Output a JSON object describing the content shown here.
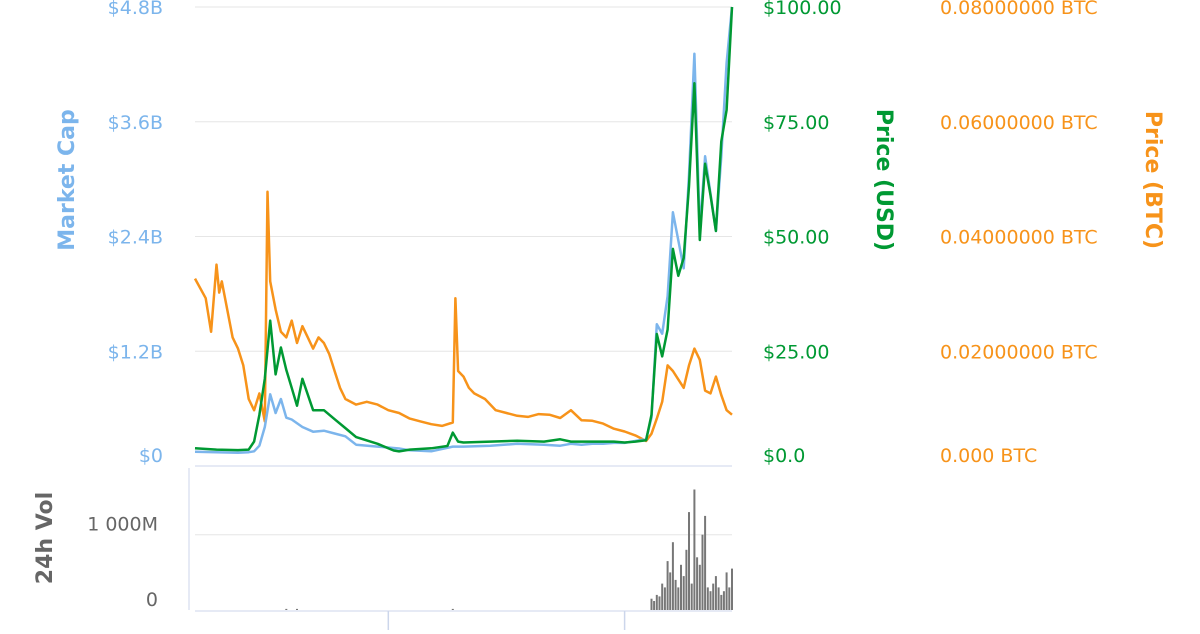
{
  "colors": {
    "market_cap": "#7cb5ec",
    "price_usd": "#009933",
    "price_btc": "#f7931a",
    "volume": "#777777",
    "axis_text_volume": "#666666",
    "gridline": "#e6e6e6",
    "axis_line": "#ccd6eb"
  },
  "chart_data": [
    {
      "type": "line",
      "grid": true,
      "legend": "none",
      "axes": {
        "market_cap": {
          "title": "Market Cap",
          "ylim": [
            0,
            4800000000
          ],
          "ticks": [
            "$0",
            "$1.2B",
            "$2.4B",
            "$3.6B",
            "$4.8B"
          ]
        },
        "price_usd": {
          "title": "Price (USD)",
          "ylim": [
            0,
            100
          ],
          "ticks": [
            "$0.0",
            "$25.00",
            "$50.00",
            "$75.00",
            "$100.00"
          ]
        },
        "price_btc": {
          "title": "Price (BTC)",
          "ylim": [
            0,
            0.08
          ],
          "ticks": [
            "0.000 BTC",
            "0.02000000 BTC",
            "0.04000000 BTC",
            "0.06000000 BTC",
            "0.08000000 BTC"
          ]
        }
      },
      "x_range": [
        0,
        100
      ],
      "series": [
        {
          "key": "price_btc",
          "axis": "price_btc",
          "x": [
            0,
            2,
            3,
            4,
            4.5,
            5,
            6,
            7,
            8,
            9,
            10,
            11,
            12,
            13,
            13.5,
            14,
            15,
            16,
            17,
            18,
            19,
            20,
            21,
            22,
            23,
            24,
            25,
            26,
            27,
            28,
            30,
            32,
            34,
            36,
            38,
            40,
            42,
            44,
            46,
            48,
            48.5,
            49,
            50,
            51,
            52,
            54,
            56,
            58,
            60,
            62,
            64,
            66,
            68,
            70,
            72,
            74,
            76,
            78,
            80,
            82,
            84,
            85,
            86,
            87,
            88,
            89,
            90,
            91,
            92,
            93,
            94,
            95,
            96,
            97,
            98,
            99,
            100
          ],
          "y": [
            0.0315,
            0.028,
            0.022,
            0.034,
            0.029,
            0.031,
            0.026,
            0.021,
            0.019,
            0.016,
            0.01,
            0.008,
            0.011,
            0.006,
            0.047,
            0.031,
            0.026,
            0.022,
            0.021,
            0.024,
            0.02,
            0.023,
            0.021,
            0.019,
            0.021,
            0.02,
            0.018,
            0.015,
            0.012,
            0.01,
            0.009,
            0.0095,
            0.009,
            0.008,
            0.0075,
            0.0065,
            0.006,
            0.0055,
            0.0052,
            0.0058,
            0.028,
            0.015,
            0.014,
            0.012,
            0.011,
            0.01,
            0.008,
            0.0075,
            0.007,
            0.0068,
            0.0073,
            0.0072,
            0.0066,
            0.008,
            0.0062,
            0.0061,
            0.0056,
            0.0047,
            0.0042,
            0.0035,
            0.0025,
            0.0038,
            0.0065,
            0.0095,
            0.016,
            0.015,
            0.0135,
            0.012,
            0.016,
            0.019,
            0.017,
            0.0115,
            0.011,
            0.014,
            0.0107,
            0.008,
            0.0072
          ]
        },
        {
          "key": "market_cap",
          "axis": "market_cap",
          "x": [
            0,
            4,
            8,
            10,
            11,
            12,
            13,
            14,
            15,
            16,
            17,
            18,
            20,
            22,
            24,
            26,
            28,
            30,
            34,
            38,
            40,
            44,
            48,
            50,
            55,
            60,
            65,
            68,
            70,
            72,
            74,
            76,
            78,
            80,
            82,
            84,
            85,
            86,
            87,
            88,
            89,
            90,
            91,
            92,
            93,
            94,
            95,
            96,
            97,
            98,
            99,
            100
          ],
          "y": [
            35000000,
            30000000,
            25000000,
            30000000,
            40000000,
            100000000,
            300000000,
            650000000,
            450000000,
            600000000,
            400000000,
            380000000,
            300000000,
            250000000,
            260000000,
            230000000,
            200000000,
            110000000,
            90000000,
            70000000,
            50000000,
            40000000,
            90000000,
            90000000,
            100000000,
            120000000,
            110000000,
            100000000,
            120000000,
            110000000,
            120000000,
            120000000,
            130000000,
            130000000,
            150000000,
            170000000,
            400000000,
            1400000000,
            1300000000,
            1700000000,
            2600000000,
            2300000000,
            2000000000,
            3000000000,
            4300000000,
            2400000000,
            3200000000,
            2800000000,
            2400000000,
            3200000000,
            4200000000,
            4800000000
          ]
        },
        {
          "key": "price_usd",
          "axis": "price_usd",
          "x": [
            0,
            4,
            8,
            10,
            11,
            12,
            13,
            14,
            15,
            16,
            17,
            18,
            19,
            20,
            22,
            24,
            26,
            28,
            30,
            34,
            37,
            38,
            40,
            44,
            47,
            48,
            49,
            50,
            55,
            60,
            65,
            68,
            70,
            72,
            74,
            76,
            78,
            80,
            82,
            84,
            85,
            86,
            87,
            88,
            89,
            90,
            91,
            92,
            93,
            94,
            95,
            96,
            97,
            98,
            99,
            100
          ],
          "y": [
            1.5,
            1.2,
            1.1,
            1.2,
            3,
            9,
            17,
            30,
            18,
            24,
            19,
            15,
            11,
            17,
            10,
            10,
            8,
            6,
            4,
            2.5,
            1,
            0.8,
            1.2,
            1.5,
            2,
            5,
            3,
            2.8,
            3.0,
            3.2,
            3.0,
            3.5,
            3.0,
            3.0,
            3.0,
            3.0,
            3.0,
            2.8,
            3.0,
            3.3,
            9,
            27,
            22,
            28,
            46,
            40,
            44,
            60,
            83,
            48,
            65,
            58,
            50,
            70,
            77,
            100
          ]
        }
      ]
    },
    {
      "type": "bar",
      "grid": true,
      "yaxis": {
        "title": "24h Vol",
        "ylim": [
          0,
          1700000000
        ],
        "ticks": [
          "0",
          "1 000M"
        ]
      },
      "x_range": [
        0,
        100
      ],
      "bars": [
        {
          "x": 17,
          "value": 15000000
        },
        {
          "x": 19,
          "value": 15000000
        },
        {
          "x": 48,
          "value": 15000000
        },
        {
          "x": 85,
          "value": 150000000
        },
        {
          "x": 85.5,
          "value": 120000000
        },
        {
          "x": 86,
          "value": 200000000
        },
        {
          "x": 86.5,
          "value": 180000000
        },
        {
          "x": 87,
          "value": 350000000
        },
        {
          "x": 87.5,
          "value": 300000000
        },
        {
          "x": 88,
          "value": 650000000
        },
        {
          "x": 88.5,
          "value": 500000000
        },
        {
          "x": 89,
          "value": 900000000
        },
        {
          "x": 89.5,
          "value": 400000000
        },
        {
          "x": 90,
          "value": 300000000
        },
        {
          "x": 90.5,
          "value": 600000000
        },
        {
          "x": 91,
          "value": 450000000
        },
        {
          "x": 91.5,
          "value": 800000000
        },
        {
          "x": 92,
          "value": 1300000000
        },
        {
          "x": 92.5,
          "value": 350000000
        },
        {
          "x": 93,
          "value": 1600000000
        },
        {
          "x": 93.5,
          "value": 700000000
        },
        {
          "x": 94,
          "value": 600000000
        },
        {
          "x": 94.5,
          "value": 1000000000
        },
        {
          "x": 95,
          "value": 1250000000
        },
        {
          "x": 95.5,
          "value": 300000000
        },
        {
          "x": 96,
          "value": 250000000
        },
        {
          "x": 96.5,
          "value": 350000000
        },
        {
          "x": 97,
          "value": 450000000
        },
        {
          "x": 97.5,
          "value": 300000000
        },
        {
          "x": 98,
          "value": 200000000
        },
        {
          "x": 98.5,
          "value": 250000000
        },
        {
          "x": 99,
          "value": 500000000
        },
        {
          "x": 99.5,
          "value": 300000000
        },
        {
          "x": 100,
          "value": 550000000
        }
      ]
    }
  ]
}
